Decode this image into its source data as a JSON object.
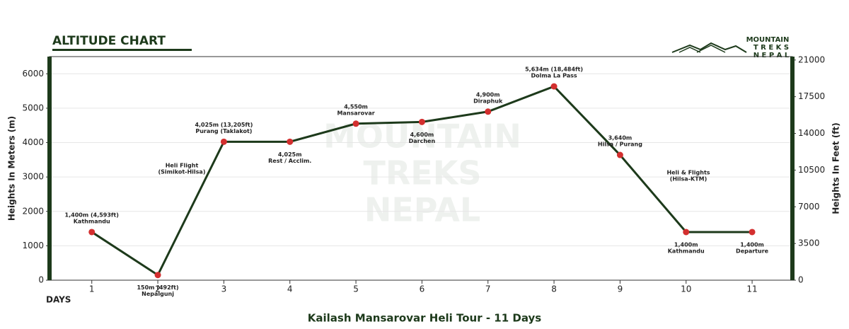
{
  "chart_data": {
    "type": "line",
    "title": "ALTITUDE CHART",
    "subtitle": "Kailash Mansarovar Heli Tour - 11 Days",
    "x_label": "DAYS",
    "y_label": "Heights In Meters (m)",
    "y2_label": "Heights In Feet (ft)",
    "brand": [
      "MOUNTAIN",
      "T R E K S",
      "N E P A L"
    ],
    "watermark": [
      "MOUNTAIN",
      "TREKS",
      "NEPAL"
    ],
    "x": [
      1,
      2,
      3,
      4,
      5,
      6,
      7,
      8,
      9,
      10,
      11
    ],
    "xlim": [
      0.36,
      11.61
    ],
    "xticks": [
      1,
      2,
      3,
      4,
      5,
      6,
      7,
      8,
      9,
      10,
      11
    ],
    "ylim": [
      0,
      6500
    ],
    "yticks": [
      0,
      1000,
      2000,
      3000,
      4000,
      5000,
      6000
    ],
    "y2lim": [
      0,
      21325
    ],
    "y2ticks": [
      0,
      3500,
      7000,
      10500,
      14000,
      17500,
      21000
    ],
    "grid": true,
    "series": [
      {
        "name": "Altitude",
        "color": "#1d3a1b",
        "marker_color": "#d32f2f",
        "values": [
          1400,
          150,
          4025,
          4025,
          4550,
          4600,
          4900,
          5634,
          3640,
          1400,
          1400
        ],
        "value_labels": [
          "1,400m (4,593ft)",
          "150m (492ft)",
          "4,025m (13,205ft)",
          "4,025m",
          "4,550m",
          "4,600m",
          "4,900m",
          "5,634m (18,484ft)",
          "3,640m",
          "1,400m",
          "1,400m"
        ],
        "point_names": [
          "Kathmandu",
          "Nepalgunj",
          "Purang (Taklakot)",
          "Rest / Acclim.",
          "Mansarovar",
          "Darchen",
          "Diraphuk",
          "Dolma La Pass",
          "Hilsa / Purang",
          "Kathmandu",
          "Departure"
        ]
      }
    ],
    "annotations": [
      [
        "Heli Flight",
        "(Simikot-Hilsa)"
      ],
      [
        "Heli & Flights",
        "(Hilsa-KTM)"
      ]
    ]
  }
}
